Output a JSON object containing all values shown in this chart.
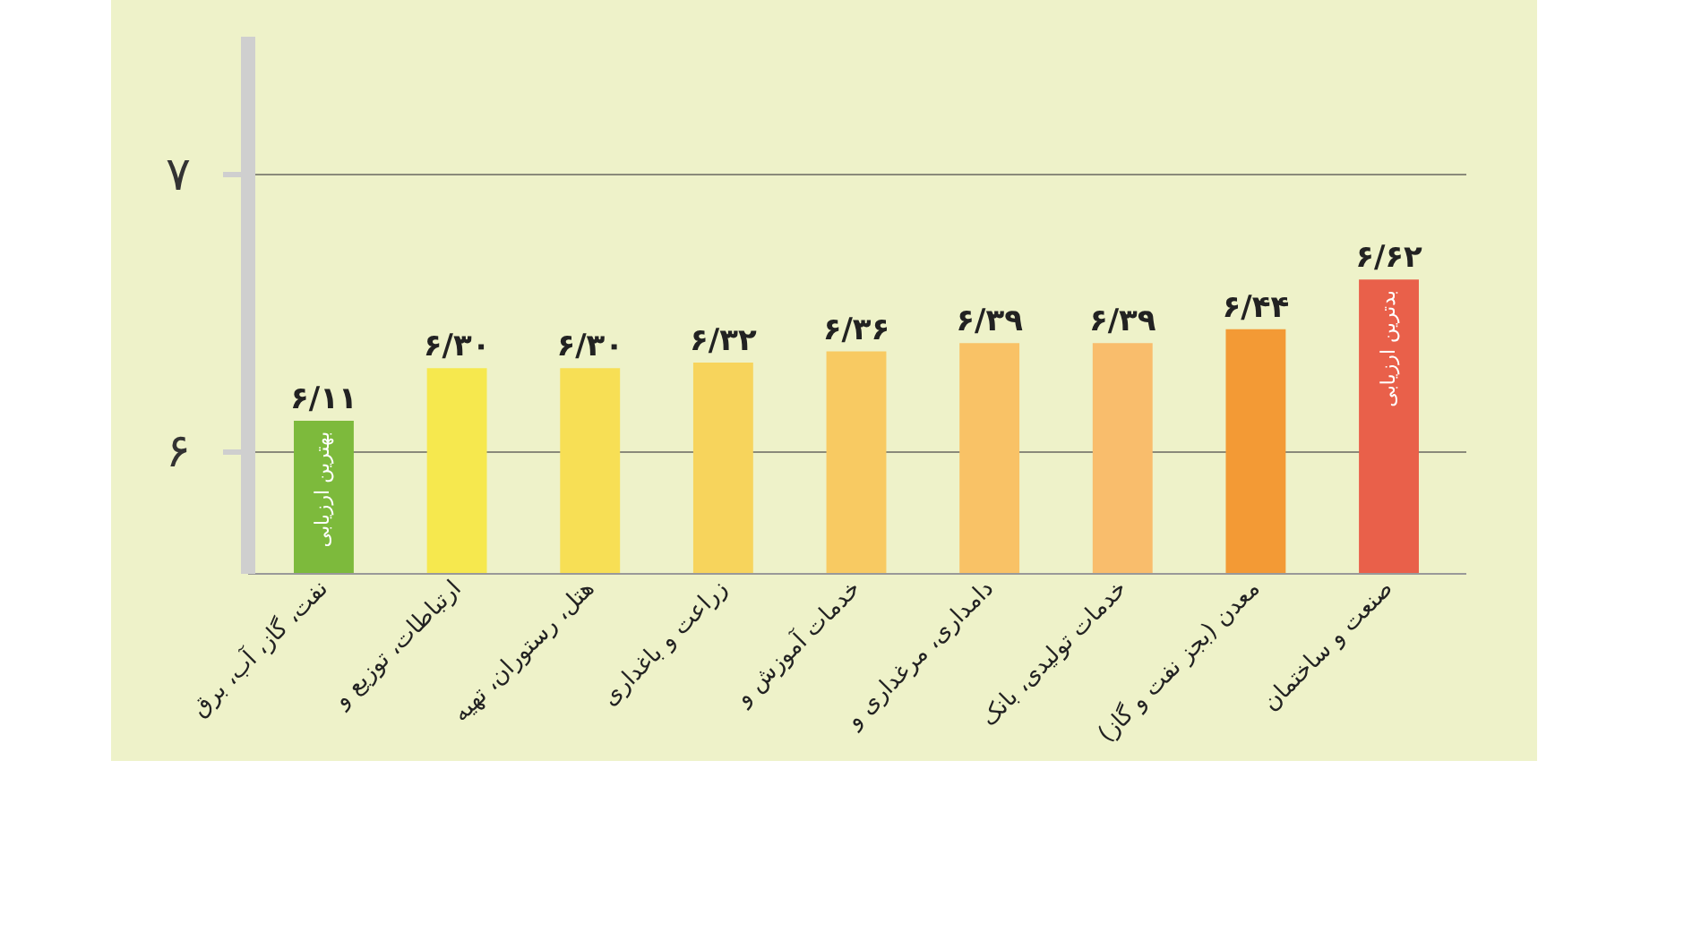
{
  "chart_data": {
    "type": "bar",
    "categories": [
      "نفت، گاز، آب، برق",
      "ارتباطات، توزیع و",
      "هتل، رستوران، تهیه",
      "زراعت و باغداری",
      "خدمات آموزش و",
      "دامداری، مرغداری و",
      "خدمات تولیدی، بانک",
      "معدن (بجز نفت و گاز)",
      "صنعت و ساختمان"
    ],
    "values": [
      6.11,
      6.3,
      6.3,
      6.32,
      6.36,
      6.39,
      6.39,
      6.44,
      6.62
    ],
    "colors": [
      "#7dba3c",
      "#f6e84e",
      "#f7df55",
      "#f7d45c",
      "#f8ca62",
      "#f9c266",
      "#f9bd6c",
      "#f39a35",
      "#e9604a"
    ],
    "value_labels": [
      "۶/۱۱",
      "۶/۳۰",
      "۶/۳۰",
      "۶/۳۲",
      "۶/۳۶",
      "۶/۳۹",
      "۶/۳۹",
      "۶/۴۴",
      "۶/۶۲"
    ],
    "ylim": [
      5.56,
      7.5
    ],
    "yticks": [
      {
        "value": 6,
        "label": "۶"
      },
      {
        "value": 7,
        "label": "۷"
      }
    ],
    "grid": "y",
    "annotations": [
      {
        "text": "بهترین ارزیابی",
        "x": "نفت، گاز، آب، برق",
        "y": 6.11
      },
      {
        "text": "بدترین ارزیابی",
        "x": "صنعت و ساختمان",
        "y": 6.62
      }
    ]
  }
}
